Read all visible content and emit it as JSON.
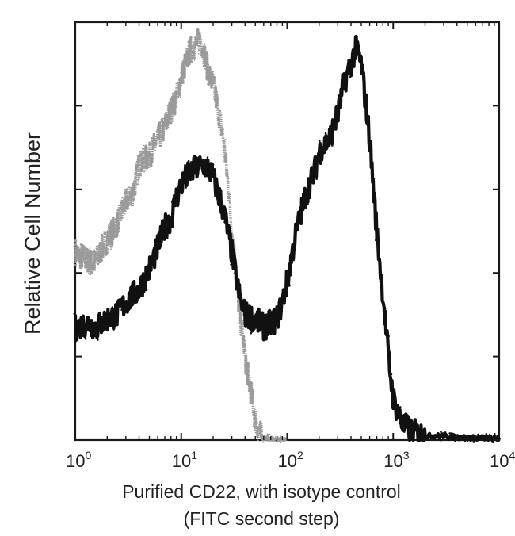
{
  "chart_data": {
    "type": "line",
    "title": "",
    "xlabel_line1": "Purified CD22, with isotype control",
    "xlabel_line2": "(FITC second step)",
    "ylabel": "Relative Cell Number",
    "x_scale": "log",
    "xlim": [
      1,
      10000
    ],
    "ylim": [
      0,
      100
    ],
    "x_ticks": [
      {
        "base": "10",
        "exp": "0",
        "value": 1
      },
      {
        "base": "10",
        "exp": "1",
        "value": 10
      },
      {
        "base": "10",
        "exp": "2",
        "value": 100
      },
      {
        "base": "10",
        "exp": "3",
        "value": 1000
      },
      {
        "base": "10",
        "exp": "4",
        "value": 10000
      }
    ],
    "y_ticks": [
      0,
      20,
      40,
      60,
      80,
      100
    ],
    "grid": false,
    "legend": "none",
    "series": [
      {
        "color": "#9a9a9a",
        "style": "dotted",
        "x": [
          1,
          1.5,
          2,
          2.5,
          3,
          3.5,
          4,
          5,
          6,
          7,
          8,
          9,
          10,
          11,
          12,
          13,
          14,
          15,
          16,
          17,
          18,
          20,
          22,
          25,
          28,
          30,
          33,
          35,
          38,
          40,
          45,
          50,
          55,
          60,
          65,
          70,
          80,
          100
        ],
        "y": [
          45,
          42,
          48,
          52,
          57,
          59,
          66,
          68,
          72,
          75,
          79,
          82,
          87,
          90,
          93,
          94,
          95,
          96,
          94,
          91,
          88,
          85,
          80,
          72,
          60,
          50,
          40,
          32,
          25,
          20,
          12,
          5,
          1.5,
          0.5,
          0.3,
          0.2,
          0,
          0
        ]
      },
      {
        "color": "#111111",
        "style": "solid",
        "x": [
          1,
          1.3,
          1.6,
          2,
          2.5,
          3,
          4,
          5,
          6,
          7,
          8,
          9,
          10,
          12,
          14,
          16,
          18,
          20,
          25,
          30,
          35,
          40,
          50,
          60,
          70,
          80,
          90,
          100,
          120,
          150,
          180,
          200,
          250,
          300,
          350,
          400,
          450,
          500,
          600,
          700,
          800,
          900,
          1000,
          1200,
          1500,
          2000,
          3000,
          5000,
          7000,
          10000
        ],
        "y": [
          27,
          28,
          27,
          29,
          30,
          33,
          36,
          41,
          46,
          51,
          53,
          58,
          61,
          64,
          65,
          66,
          65,
          63,
          55,
          45,
          35,
          30,
          29,
          27,
          28,
          29,
          33,
          38,
          49,
          59,
          64,
          69,
          72,
          78,
          86,
          90,
          94,
          90,
          72,
          50,
          35,
          20,
          10,
          4,
          2,
          1,
          1,
          0.5,
          0.5,
          0.3
        ]
      }
    ]
  }
}
